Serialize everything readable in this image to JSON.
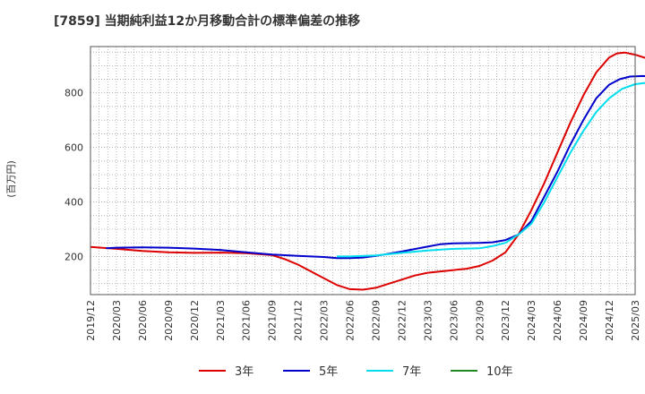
{
  "chart_data": {
    "type": "line",
    "title": "[7859]  当期純利益12か月移動合計の標準偏差の推移",
    "ylabel": "(百万円)",
    "xlabel": "",
    "ylim": [
      60,
      970
    ],
    "yticks": [
      200,
      400,
      600,
      800
    ],
    "xlim": [
      0,
      21
    ],
    "grid": true,
    "legend_position": "bottom",
    "categories": [
      "2019/12",
      "2020/03",
      "2020/06",
      "2020/09",
      "2020/12",
      "2021/03",
      "2021/06",
      "2021/09",
      "2021/12",
      "2022/03",
      "2022/06",
      "2022/09",
      "2022/12",
      "2023/03",
      "2023/06",
      "2023/09",
      "2023/12",
      "2024/03",
      "2024/06",
      "2024/09",
      "2024/12",
      "2025/03"
    ],
    "series": [
      {
        "name": "3年",
        "color": "#dd0000",
        "points": [
          [
            0,
            235
          ],
          [
            1,
            228
          ],
          [
            2,
            220
          ],
          [
            3,
            215
          ],
          [
            4,
            213
          ],
          [
            5,
            214
          ],
          [
            6,
            212
          ],
          [
            7,
            205
          ],
          [
            7.5,
            190
          ],
          [
            8,
            170
          ],
          [
            8.5,
            145
          ],
          [
            9,
            120
          ],
          [
            9.5,
            95
          ],
          [
            10,
            80
          ],
          [
            10.5,
            78
          ],
          [
            11,
            85
          ],
          [
            11.5,
            100
          ],
          [
            12,
            115
          ],
          [
            12.5,
            130
          ],
          [
            13,
            140
          ],
          [
            13.5,
            145
          ],
          [
            14,
            150
          ],
          [
            14.5,
            155
          ],
          [
            15,
            165
          ],
          [
            15.5,
            185
          ],
          [
            16,
            215
          ],
          [
            16.5,
            280
          ],
          [
            17,
            370
          ],
          [
            17.5,
            470
          ],
          [
            18,
            580
          ],
          [
            18.5,
            690
          ],
          [
            19,
            790
          ],
          [
            19.5,
            875
          ],
          [
            20,
            930
          ],
          [
            20.3,
            945
          ],
          [
            20.6,
            948
          ],
          [
            21,
            940
          ],
          [
            21.5,
            925
          ],
          [
            21.8,
            915
          ]
        ]
      },
      {
        "name": "5年",
        "color": "#0000cc",
        "points": [
          [
            0.6,
            230
          ],
          [
            1,
            232
          ],
          [
            2,
            233
          ],
          [
            3,
            232
          ],
          [
            4,
            229
          ],
          [
            5,
            224
          ],
          [
            6,
            215
          ],
          [
            7,
            207
          ],
          [
            8,
            202
          ],
          [
            9,
            198
          ],
          [
            9.5,
            194
          ],
          [
            10,
            194
          ],
          [
            10.5,
            196
          ],
          [
            11,
            202
          ],
          [
            12,
            218
          ],
          [
            13,
            236
          ],
          [
            13.5,
            245
          ],
          [
            14,
            248
          ],
          [
            15,
            250
          ],
          [
            15.5,
            252
          ],
          [
            16,
            260
          ],
          [
            16.5,
            280
          ],
          [
            17,
            330
          ],
          [
            17.5,
            420
          ],
          [
            18,
            510
          ],
          [
            18.5,
            610
          ],
          [
            19,
            700
          ],
          [
            19.5,
            780
          ],
          [
            20,
            830
          ],
          [
            20.4,
            850
          ],
          [
            20.8,
            860
          ],
          [
            21.3,
            862
          ],
          [
            21.8,
            860
          ]
        ]
      },
      {
        "name": "7年",
        "color": "#00ddee",
        "points": [
          [
            9.5,
            200
          ],
          [
            10,
            200
          ],
          [
            11,
            204
          ],
          [
            12,
            213
          ],
          [
            13,
            222
          ],
          [
            13.5,
            225
          ],
          [
            14,
            228
          ],
          [
            15,
            230
          ],
          [
            15.5,
            238
          ],
          [
            16,
            250
          ],
          [
            16.5,
            280
          ],
          [
            17,
            320
          ],
          [
            17.5,
            400
          ],
          [
            18,
            490
          ],
          [
            18.5,
            580
          ],
          [
            19,
            660
          ],
          [
            19.5,
            730
          ],
          [
            20,
            780
          ],
          [
            20.5,
            815
          ],
          [
            21,
            832
          ],
          [
            21.5,
            838
          ],
          [
            21.8,
            840
          ]
        ]
      },
      {
        "name": "10年",
        "color": "#228822",
        "points": []
      }
    ]
  }
}
